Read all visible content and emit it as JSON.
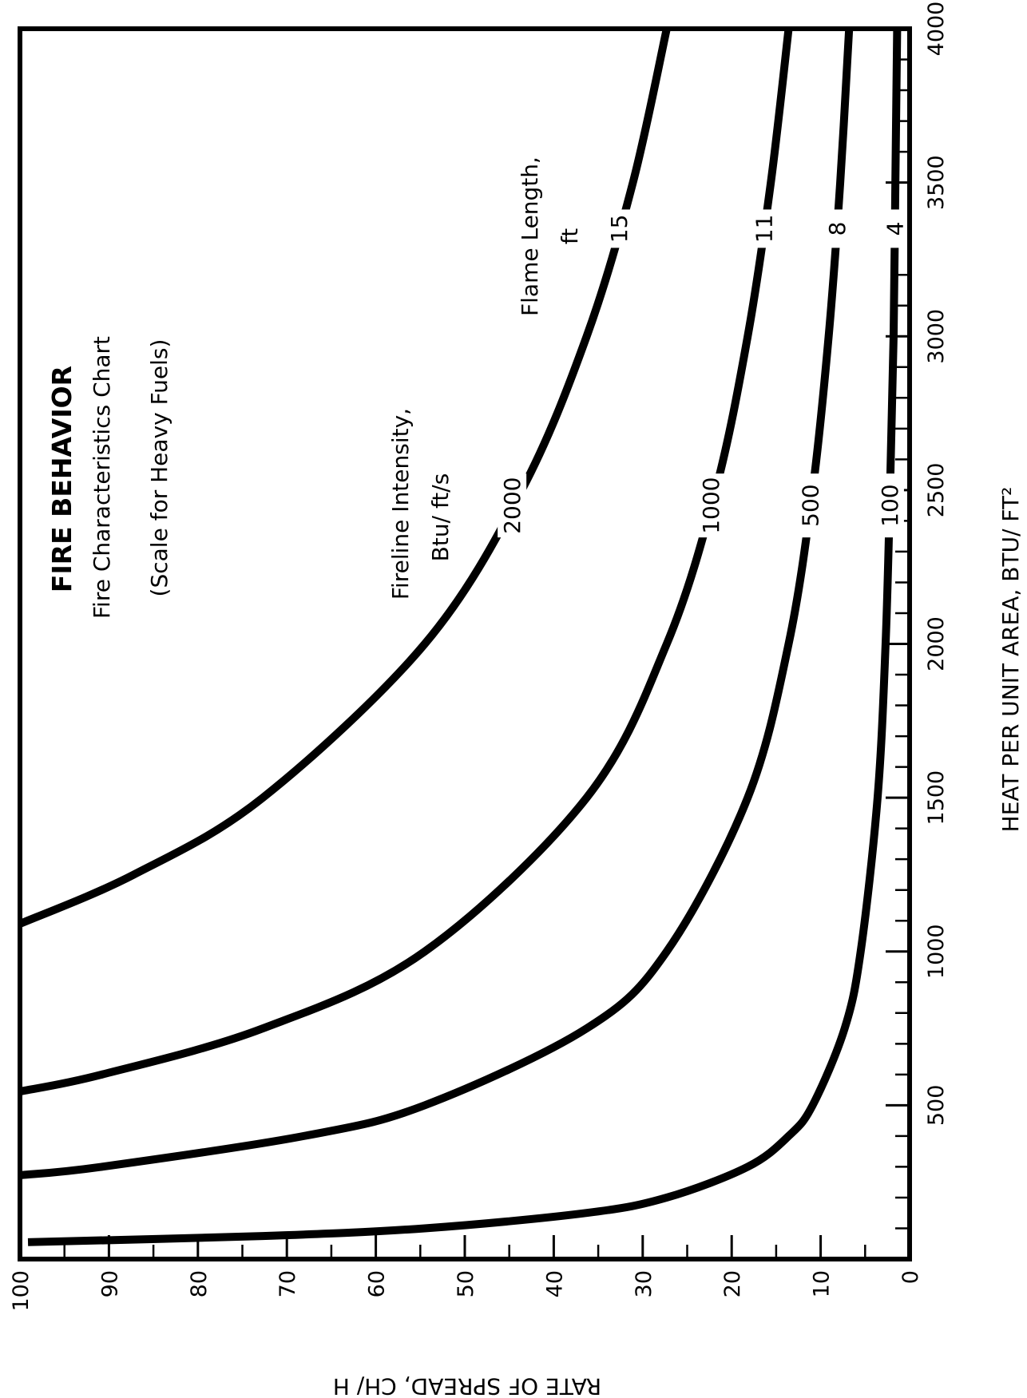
{
  "chart_data": {
    "type": "line",
    "title": "FIRE BEHAVIOR",
    "subtitle": "Fire Characteristics Chart",
    "note": "(Scale for Heavy Fuels)",
    "intensity_label": [
      "Fireline Intensity,",
      "Btu/ ft/s"
    ],
    "flame_label": [
      "Flame Length,",
      "ft"
    ],
    "x_label": "HEAT PER UNIT AREA, BTU/ FT²",
    "y_label": "RATE OF SPREAD, CH/ H",
    "xlim": [
      0,
      4000
    ],
    "ylim": [
      0,
      100
    ],
    "xticks": [
      500,
      1000,
      1500,
      2000,
      2500,
      3000,
      3500,
      4000
    ],
    "xminor_ticks": [
      100,
      200,
      300,
      400,
      600,
      700,
      800,
      900,
      1100,
      1200,
      1300,
      1400,
      1600,
      1700,
      1800,
      1900,
      2100,
      2200,
      2300,
      2400,
      2600,
      2700,
      2800,
      2900,
      3100,
      3200,
      3300,
      3400,
      3600,
      3700,
      3800,
      3900
    ],
    "yticks": [
      0,
      10,
      20,
      30,
      40,
      50,
      60,
      70,
      80,
      90,
      100
    ],
    "yminor_ticks": [
      5,
      15,
      25,
      35,
      45,
      55,
      65,
      75,
      85,
      95
    ],
    "series": [
      {
        "name": "2000",
        "flame_length": "15",
        "color": "#000000",
        "x": [
          1090,
          1250,
          1500,
          2000,
          2500,
          3000,
          3500,
          4000
        ],
        "values": [
          100,
          87.2,
          72.7,
          54.5,
          43.6,
          36.3,
          31.1,
          27.3
        ]
      },
      {
        "name": "1000",
        "flame_length": "11",
        "color": "#000000",
        "x": [
          545,
          600,
          750,
          1000,
          1500,
          2000,
          2500,
          3000,
          3500,
          4000
        ],
        "values": [
          100,
          90.8,
          72.7,
          54.5,
          36.3,
          27.3,
          21.8,
          18.2,
          15.6,
          13.6
        ]
      },
      {
        "name": "500",
        "flame_length": "8",
        "color": "#000000",
        "x": [
          273,
          300,
          400,
          500,
          750,
          1000,
          1500,
          2000,
          2500,
          3000,
          3500,
          4000
        ],
        "values": [
          99.8,
          90.8,
          68.1,
          54.5,
          36.3,
          27.3,
          18.2,
          13.6,
          10.9,
          9.1,
          7.8,
          6.8
        ]
      },
      {
        "name": "100",
        "flame_length": "4",
        "color": "#000000",
        "x": [
          55,
          75,
          100,
          150,
          200,
          300,
          400,
          500,
          750,
          1000,
          1500,
          2000,
          2500,
          3000,
          3500,
          4000
        ],
        "values": [
          99.1,
          72.7,
          54.5,
          36.3,
          27.3,
          18.2,
          13.6,
          10.9,
          7.3,
          5.5,
          3.6,
          2.7,
          2.2,
          1.8,
          1.6,
          1.4
        ]
      }
    ]
  }
}
